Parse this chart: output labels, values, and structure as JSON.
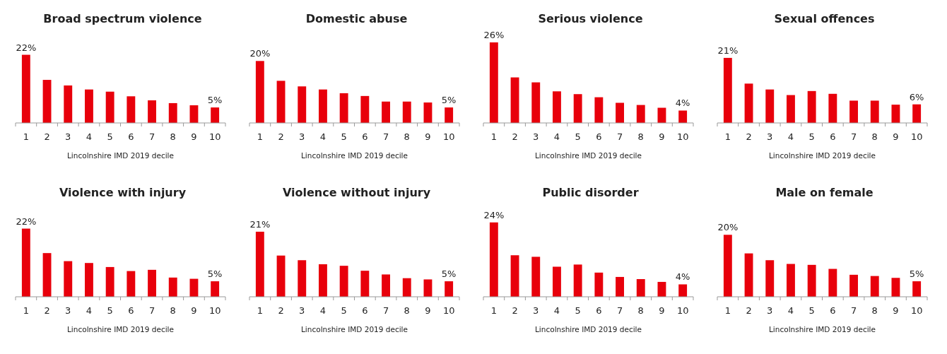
{
  "chart_data": [
    {
      "type": "bar",
      "title": "Broad spectrum violence",
      "xlabel": "Lincolnshire IMD 2019 decile",
      "color": "#e8000b",
      "categories": [
        "1",
        "2",
        "3",
        "4",
        "5",
        "6",
        "7",
        "8",
        "9",
        "10"
      ],
      "values": [
        22,
        13.9,
        12.1,
        10.8,
        10.1,
        8.6,
        7.3,
        6.4,
        5.7,
        5
      ],
      "value_labels": [
        "22%",
        null,
        null,
        null,
        null,
        null,
        null,
        null,
        null,
        "5%"
      ]
    },
    {
      "type": "bar",
      "title": "Domestic abuse",
      "xlabel": "Lincolnshire IMD 2019 decile",
      "color": "#e8000b",
      "categories": [
        "1",
        "2",
        "3",
        "4",
        "5",
        "6",
        "7",
        "8",
        "9",
        "10"
      ],
      "values": [
        20,
        13.6,
        11.8,
        10.8,
        9.6,
        8.7,
        6.9,
        6.9,
        6.6,
        5
      ],
      "value_labels": [
        "20%",
        null,
        null,
        null,
        null,
        null,
        null,
        null,
        null,
        "5%"
      ]
    },
    {
      "type": "bar",
      "title": "Serious violence",
      "xlabel": "Lincolnshire IMD 2019 decile",
      "color": "#e8000b",
      "categories": [
        "1",
        "2",
        "3",
        "4",
        "5",
        "6",
        "7",
        "8",
        "9",
        "10"
      ],
      "values": [
        26,
        14.7,
        13.1,
        10.2,
        9.3,
        8.3,
        6.5,
        5.8,
        4.9,
        4
      ],
      "value_labels": [
        "26%",
        null,
        null,
        null,
        null,
        null,
        null,
        null,
        null,
        "4%"
      ]
    },
    {
      "type": "bar",
      "title": "Sexual offences",
      "xlabel": "Lincolnshire IMD 2019 decile",
      "color": "#e8000b",
      "categories": [
        "1",
        "2",
        "3",
        "4",
        "5",
        "6",
        "7",
        "8",
        "9",
        "10"
      ],
      "values": [
        21,
        12.7,
        10.8,
        9,
        10.3,
        9.4,
        7.2,
        7.2,
        5.9,
        6
      ],
      "value_labels": [
        "21%",
        null,
        null,
        null,
        null,
        null,
        null,
        null,
        null,
        "6%"
      ]
    },
    {
      "type": "bar",
      "title": "Violence with injury",
      "xlabel": "Lincolnshire IMD 2019 decile",
      "color": "#e8000b",
      "categories": [
        "1",
        "2",
        "3",
        "4",
        "5",
        "6",
        "7",
        "8",
        "9",
        "10"
      ],
      "values": [
        22,
        14.1,
        11.5,
        10.9,
        9.6,
        8.3,
        8.7,
        6.2,
        5.8,
        5
      ],
      "value_labels": [
        "22%",
        null,
        null,
        null,
        null,
        null,
        null,
        null,
        null,
        "5%"
      ]
    },
    {
      "type": "bar",
      "title": "Violence without injury",
      "xlabel": "Lincolnshire IMD 2019 decile",
      "color": "#e8000b",
      "categories": [
        "1",
        "2",
        "3",
        "4",
        "5",
        "6",
        "7",
        "8",
        "9",
        "10"
      ],
      "values": [
        21,
        13.3,
        11.8,
        10.5,
        10,
        8.4,
        7.2,
        6,
        5.6,
        5
      ],
      "value_labels": [
        "21%",
        null,
        null,
        null,
        null,
        null,
        null,
        null,
        null,
        "5%"
      ]
    },
    {
      "type": "bar",
      "title": "Public disorder",
      "xlabel": "Lincolnshire IMD 2019 decile",
      "color": "#e8000b",
      "categories": [
        "1",
        "2",
        "3",
        "4",
        "5",
        "6",
        "7",
        "8",
        "9",
        "10"
      ],
      "values": [
        24,
        13.4,
        12.9,
        9.7,
        10.4,
        7.8,
        6.4,
        5.7,
        4.8,
        4
      ],
      "value_labels": [
        "24%",
        null,
        null,
        null,
        null,
        null,
        null,
        null,
        null,
        "4%"
      ]
    },
    {
      "type": "bar",
      "title": "Male on female",
      "xlabel": "Lincolnshire IMD 2019 decile",
      "color": "#e8000b",
      "categories": [
        "1",
        "2",
        "3",
        "4",
        "5",
        "6",
        "7",
        "8",
        "9",
        "10"
      ],
      "values": [
        20,
        14,
        11.8,
        10.6,
        10.3,
        9,
        7.1,
        6.7,
        6.1,
        5
      ],
      "value_labels": [
        "20%",
        null,
        null,
        null,
        null,
        null,
        null,
        null,
        null,
        "5%"
      ]
    }
  ]
}
